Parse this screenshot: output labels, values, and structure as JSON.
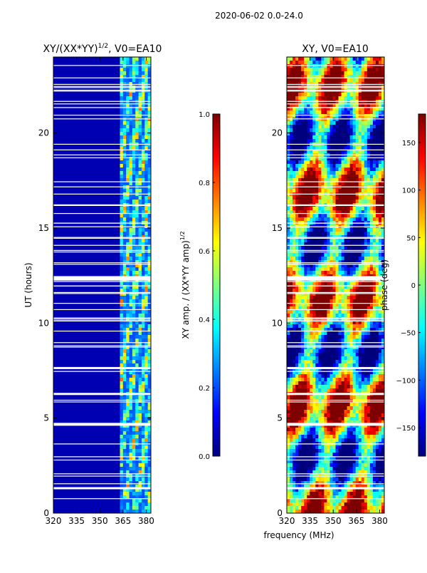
{
  "suptitle": "2020-06-02 0.0-24.0",
  "colors": {
    "jet": [
      "#00007f",
      "#0000ff",
      "#007fff",
      "#00ffff",
      "#7fff7f",
      "#ffff00",
      "#ff7f00",
      "#ff0000",
      "#7f0000"
    ]
  },
  "chart_data": [
    {
      "type": "heatmap",
      "title_main": "XY/(XX*YY)",
      "title_exp": "1/2",
      "title_suffix": ", V0=EA10",
      "xlabel": "",
      "ylabel": "UT (hours)",
      "xlim": [
        320,
        383
      ],
      "ylim": [
        0,
        24
      ],
      "xticks": [
        "320",
        "335",
        "350",
        "365",
        "380"
      ],
      "xtick_values": [
        320,
        335,
        350,
        365,
        380
      ],
      "yticks": [
        "0",
        "5",
        "10",
        "15",
        "20"
      ],
      "ytick_values": [
        0,
        5,
        10,
        15,
        20
      ],
      "background_value": 0.05,
      "band_start_mhz": 363,
      "band_value_range": [
        0.2,
        0.8
      ],
      "colorbar": {
        "label_main": "XY amp. / (XX*YY amp)",
        "label_exp": "1/2",
        "range": [
          0.0,
          1.0
        ],
        "ticks": [
          "0.0",
          "0.2",
          "0.4",
          "0.6",
          "0.8",
          "1.0"
        ],
        "tick_values": [
          0.0,
          0.2,
          0.4,
          0.6,
          0.8,
          1.0
        ]
      }
    },
    {
      "type": "heatmap",
      "title": "XY, V0=EA10",
      "xlabel": "frequency (MHz)",
      "ylabel": "",
      "xlim": [
        320,
        383
      ],
      "ylim": [
        0,
        24
      ],
      "xticks": [
        "320",
        "335",
        "350",
        "365",
        "380"
      ],
      "xtick_values": [
        320,
        335,
        350,
        365,
        380
      ],
      "yticks": [
        "0",
        "5",
        "10",
        "15",
        "20"
      ],
      "ytick_values": [
        0,
        5,
        10,
        15,
        20
      ],
      "value_range": [
        -180,
        180
      ],
      "colorbar": {
        "label": "phase (deg)",
        "range": [
          -180,
          180
        ],
        "ticks": [
          "−150",
          "−100",
          "−50",
          "0",
          "50",
          "100",
          "150"
        ],
        "tick_values": [
          -150,
          -100,
          -50,
          0,
          50,
          100,
          150
        ]
      }
    }
  ]
}
